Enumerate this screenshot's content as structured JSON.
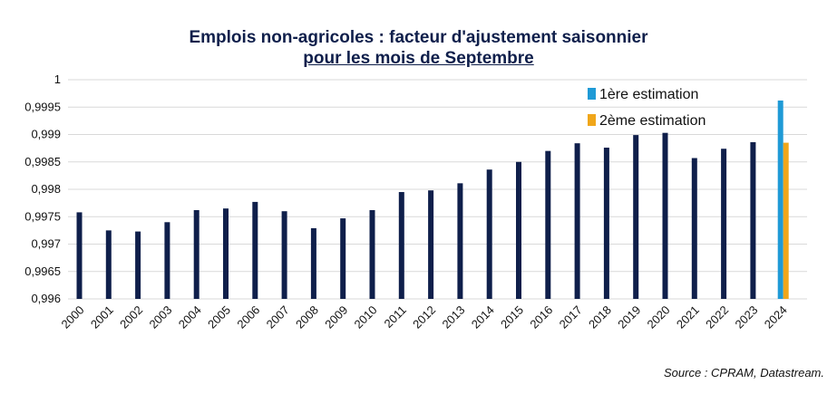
{
  "chart_data": {
    "type": "bar",
    "title": "Emplois non-agricoles : facteur d'ajustement saisonnier",
    "subtitle": "pour les mois de Septembre",
    "ylim": [
      0.996,
      1
    ],
    "yticks": [
      "0,996",
      "0,9965",
      "0,997",
      "0,9975",
      "0,998",
      "0,9985",
      "0,999",
      "0,9995",
      "1"
    ],
    "categories": [
      "2000",
      "2001",
      "2002",
      "2003",
      "2004",
      "2005",
      "2006",
      "2007",
      "2008",
      "2009",
      "2010",
      "2011",
      "2012",
      "2013",
      "2014",
      "2015",
      "2016",
      "2017",
      "2018",
      "2019",
      "2020",
      "2021",
      "2022",
      "2023",
      "2024"
    ],
    "values": [
      0.99758,
      0.99725,
      0.99723,
      0.9974,
      0.99762,
      0.99765,
      0.99777,
      0.9976,
      0.99729,
      0.99747,
      0.99762,
      0.99795,
      0.99798,
      0.99811,
      0.99836,
      0.9985,
      0.9987,
      0.99884,
      0.99876,
      0.99899,
      0.99903,
      0.99857,
      0.99874,
      0.99886,
      null
    ],
    "estimates_2024": {
      "first": 0.99962,
      "second": 0.99885
    },
    "grid": true,
    "legend": {
      "position": "top-right",
      "entries": [
        "1ère estimation",
        "2ème estimation"
      ]
    },
    "colors": {
      "bar": "#0f1f4b",
      "first": "#1f9ad6",
      "second": "#f0a61a",
      "grid": "#d9d9d9"
    }
  },
  "source": "Source : CPRAM, Datastream."
}
